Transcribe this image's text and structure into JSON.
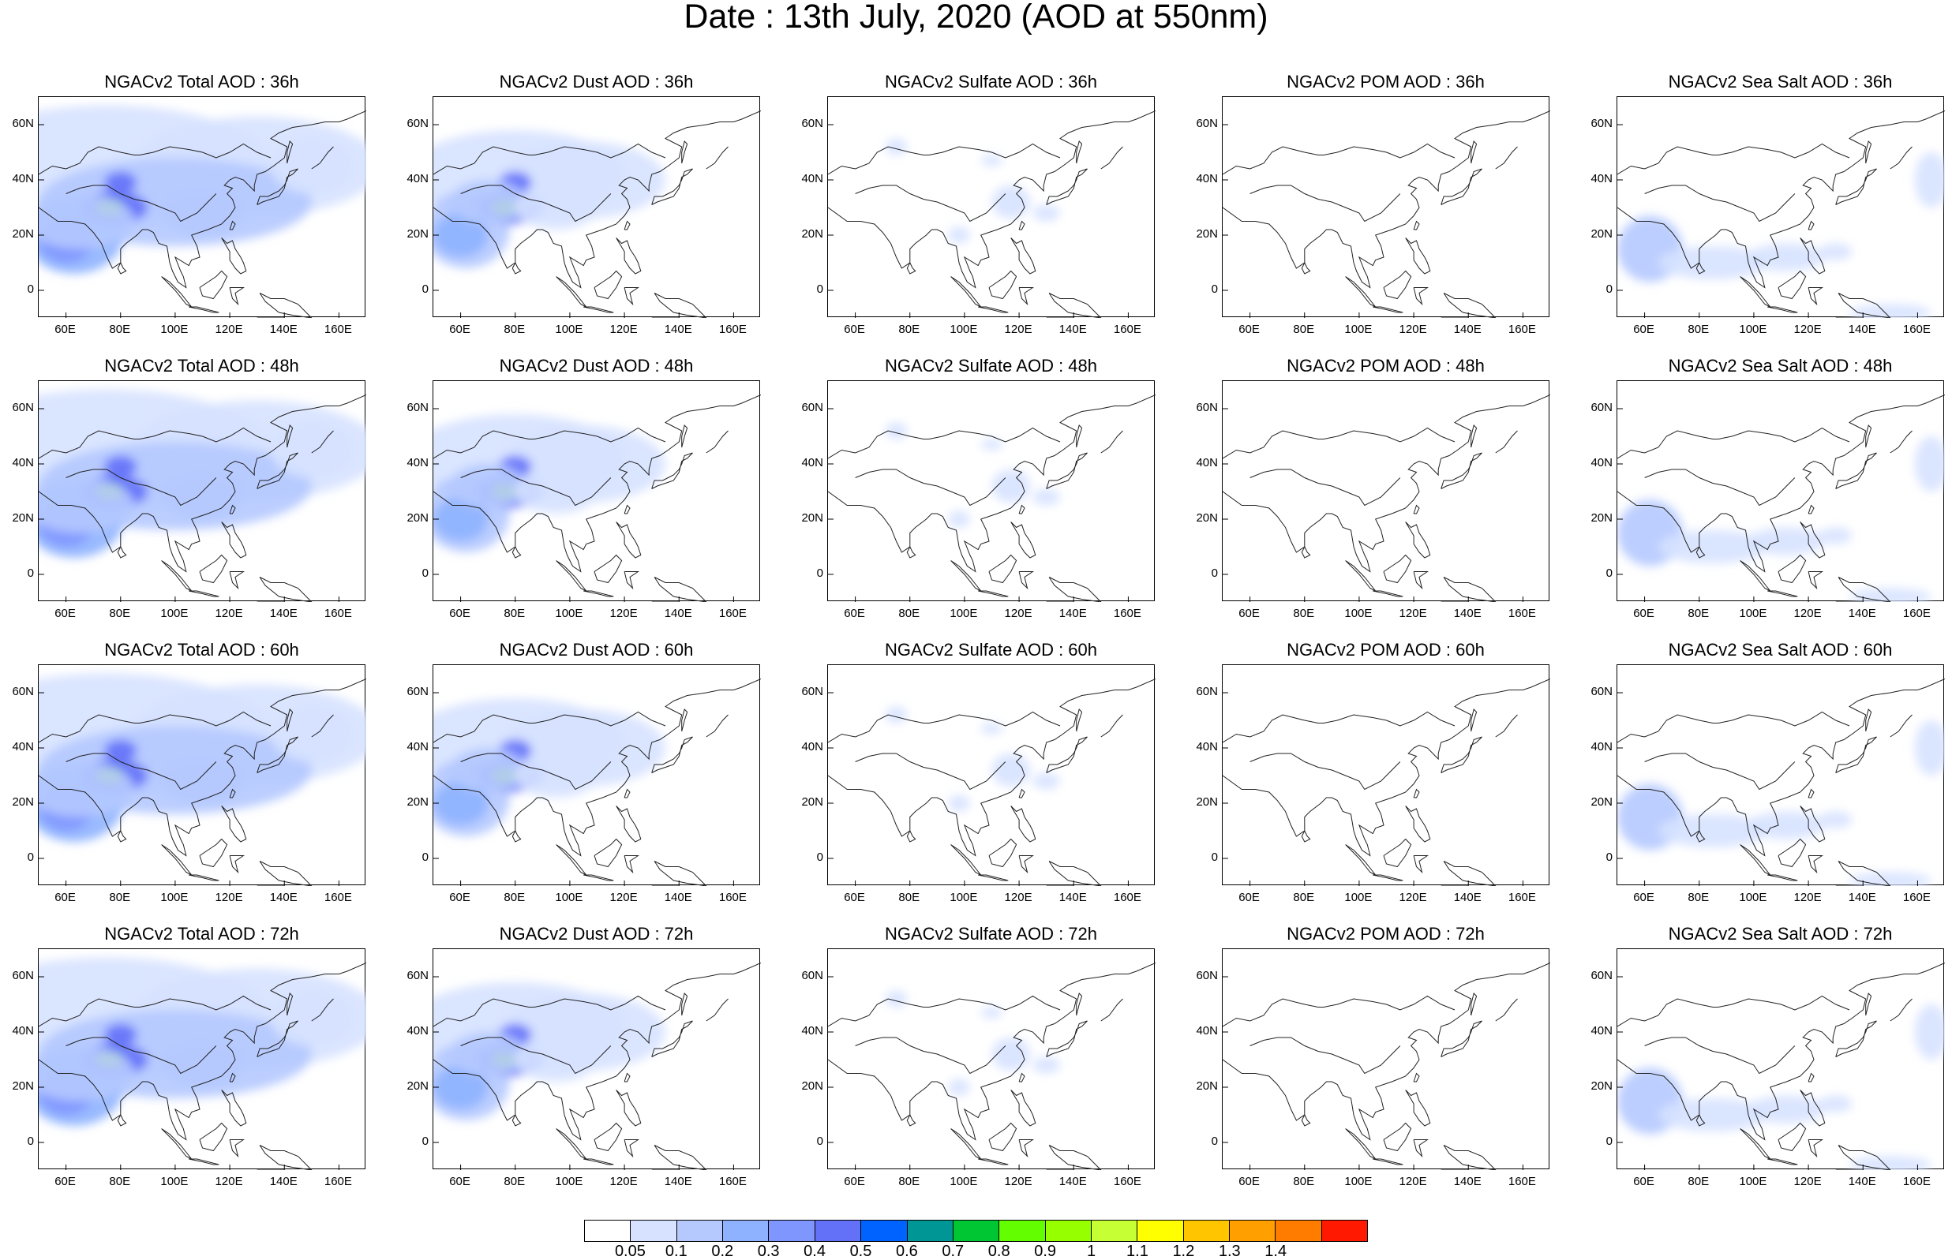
{
  "title": "Date : 13th July, 2020 (AOD at 550nm)",
  "chart_data": {
    "type": "heatmap",
    "title": "Date : 13th July, 2020 (AOD at 550nm)",
    "y_ticks": [
      "60N",
      "40N",
      "20N",
      "0"
    ],
    "x_ticks": [
      "60E",
      "80E",
      "100E",
      "120E",
      "140E",
      "160E"
    ],
    "lon_range": [
      50,
      170
    ],
    "lat_range": [
      -10,
      70
    ],
    "colorbar": {
      "labels": [
        "0.05",
        "0.1",
        "0.2",
        "0.3",
        "0.4",
        "0.5",
        "0.6",
        "0.7",
        "0.8",
        "0.9",
        "1",
        "1.1",
        "1.2",
        "1.3",
        "1.4"
      ],
      "colors": [
        "#ffffff",
        "#d6e2ff",
        "#b5c9ff",
        "#8eb2ff",
        "#7f96ff",
        "#6370f8",
        "#0063ff",
        "#009696",
        "#00c633",
        "#63ff00",
        "#96ff00",
        "#c6ff33",
        "#ffff00",
        "#ffc600",
        "#ffa000",
        "#ff7c00",
        "#ff1900"
      ]
    },
    "panels": [
      {
        "title": "NGACv2 Total AOD : 36h",
        "species": "total"
      },
      {
        "title": "NGACv2 Dust AOD : 36h",
        "species": "dust"
      },
      {
        "title": "NGACv2 Sulfate AOD : 36h",
        "species": "sulfate"
      },
      {
        "title": "NGACv2 POM AOD : 36h",
        "species": "pom"
      },
      {
        "title": "NGACv2 Sea Salt AOD : 36h",
        "species": "seasalt"
      },
      {
        "title": "NGACv2 Total AOD : 48h",
        "species": "total"
      },
      {
        "title": "NGACv2 Dust AOD : 48h",
        "species": "dust"
      },
      {
        "title": "NGACv2 Sulfate AOD : 48h",
        "species": "sulfate"
      },
      {
        "title": "NGACv2 POM AOD : 48h",
        "species": "pom"
      },
      {
        "title": "NGACv2 Sea Salt AOD : 48h",
        "species": "seasalt"
      },
      {
        "title": "NGACv2 Total AOD : 60h",
        "species": "total"
      },
      {
        "title": "NGACv2 Dust AOD : 60h",
        "species": "dust"
      },
      {
        "title": "NGACv2 Sulfate AOD : 60h",
        "species": "sulfate"
      },
      {
        "title": "NGACv2 POM AOD : 60h",
        "species": "pom"
      },
      {
        "title": "NGACv2 Sea Salt AOD : 60h",
        "species": "seasalt"
      },
      {
        "title": "NGACv2 Total AOD : 72h",
        "species": "total"
      },
      {
        "title": "NGACv2 Dust AOD : 72h",
        "species": "dust"
      },
      {
        "title": "NGACv2 Sulfate AOD : 72h",
        "species": "sulfate"
      },
      {
        "title": "NGACv2 POM AOD : 72h",
        "species": "pom"
      },
      {
        "title": "NGACv2 Sea Salt  AOD : 72h",
        "species": "seasalt"
      }
    ]
  }
}
